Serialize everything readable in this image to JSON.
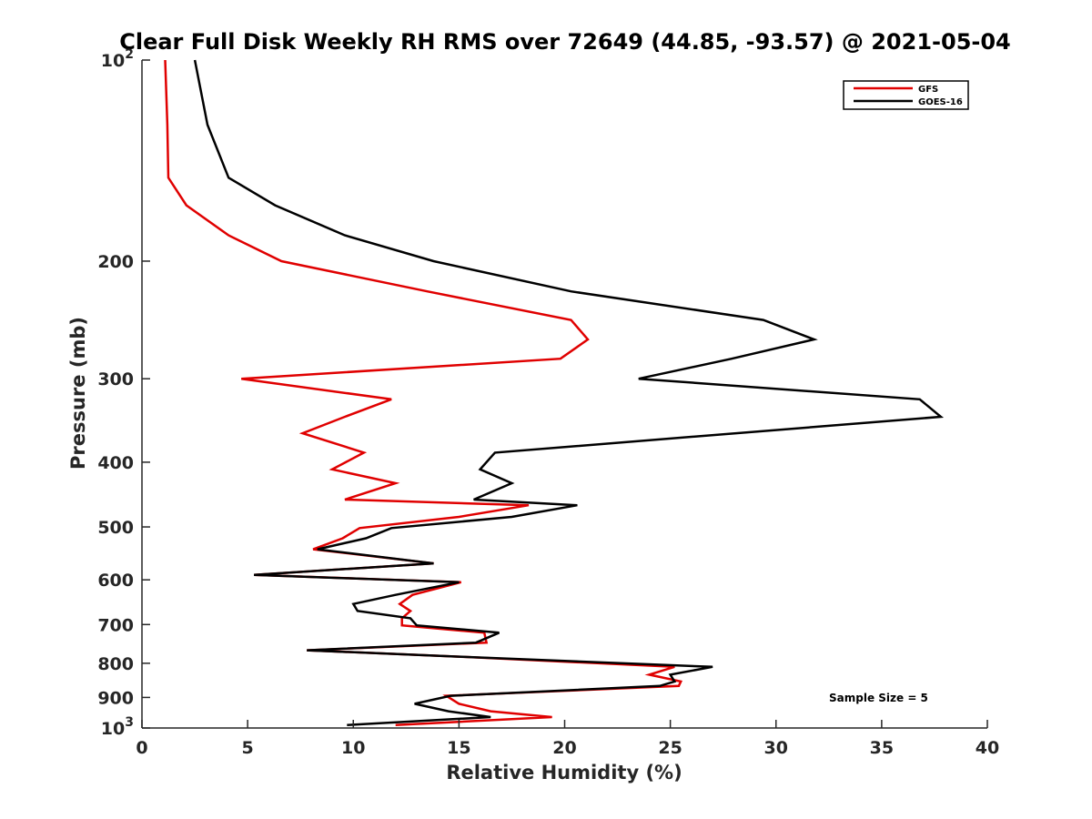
{
  "chart_data": {
    "type": "line",
    "title": "Clear Full Disk Weekly RH RMS over 72649 (44.85, -93.57) @ 2021-05-04",
    "xlabel": "Relative Humidity (%)",
    "ylabel": "Pressure (mb)",
    "xlim": [
      0,
      40
    ],
    "ylim": [
      100,
      1000
    ],
    "yscale": "log",
    "y_reversed": true,
    "x_ticks": [
      0,
      5,
      10,
      15,
      20,
      25,
      30,
      35,
      40
    ],
    "x_tick_labels": [
      "0",
      "5",
      "10",
      "15",
      "20",
      "25",
      "30",
      "35",
      "40"
    ],
    "y_ticks": [
      100,
      200,
      300,
      400,
      500,
      600,
      700,
      800,
      900,
      1000
    ],
    "y_tick_labels": [
      {
        "base": "10",
        "exp": "2"
      },
      {
        "base": "200",
        "exp": ""
      },
      {
        "base": "300",
        "exp": ""
      },
      {
        "base": "400",
        "exp": ""
      },
      {
        "base": "500",
        "exp": ""
      },
      {
        "base": "600",
        "exp": ""
      },
      {
        "base": "700",
        "exp": ""
      },
      {
        "base": "800",
        "exp": ""
      },
      {
        "base": "900",
        "exp": ""
      },
      {
        "base": "10",
        "exp": "3"
      }
    ],
    "legend_position": "top-right",
    "annotation": "Sample Size = 5",
    "series": [
      {
        "name": "GFS",
        "color": "#e00000",
        "points": [
          [
            1.1,
            100
          ],
          [
            1.2,
            125
          ],
          [
            1.25,
            150
          ],
          [
            2.1,
            165
          ],
          [
            4.1,
            183
          ],
          [
            6.6,
            200
          ],
          [
            13.5,
            222
          ],
          [
            20.3,
            245
          ],
          [
            21.1,
            262
          ],
          [
            19.8,
            280
          ],
          [
            4.7,
            300
          ],
          [
            11.8,
            322
          ],
          [
            9.6,
            342
          ],
          [
            7.6,
            362
          ],
          [
            10.5,
            387
          ],
          [
            9.0,
            410
          ],
          [
            12.0,
            430
          ],
          [
            9.6,
            455
          ],
          [
            18.3,
            464
          ],
          [
            15.0,
            483
          ],
          [
            10.3,
            502
          ],
          [
            9.5,
            520
          ],
          [
            8.1,
            540
          ],
          [
            13.8,
            567
          ],
          [
            5.3,
            590
          ],
          [
            15.1,
            605
          ],
          [
            12.8,
            632
          ],
          [
            12.2,
            652
          ],
          [
            12.7,
            668
          ],
          [
            12.3,
            685
          ],
          [
            12.3,
            702
          ],
          [
            16.2,
            720
          ],
          [
            16.3,
            745
          ],
          [
            7.8,
            765
          ],
          [
            15.0,
            782
          ],
          [
            25.2,
            810
          ],
          [
            24.0,
            832
          ],
          [
            25.5,
            852
          ],
          [
            25.4,
            865
          ],
          [
            14.4,
            895
          ],
          [
            15.0,
            920
          ],
          [
            16.5,
            944
          ],
          [
            19.4,
            963
          ],
          [
            12.0,
            990
          ]
        ]
      },
      {
        "name": "GOES-16",
        "color": "#000000",
        "points": [
          [
            2.5,
            100
          ],
          [
            3.1,
            125
          ],
          [
            4.1,
            150
          ],
          [
            6.3,
            165
          ],
          [
            9.6,
            183
          ],
          [
            13.8,
            200
          ],
          [
            20.3,
            222
          ],
          [
            29.4,
            245
          ],
          [
            31.8,
            262
          ],
          [
            27.9,
            280
          ],
          [
            23.5,
            300
          ],
          [
            36.8,
            322
          ],
          [
            37.8,
            342
          ],
          [
            16.7,
            387
          ],
          [
            16.0,
            410
          ],
          [
            17.5,
            430
          ],
          [
            15.7,
            455
          ],
          [
            20.6,
            464
          ],
          [
            17.5,
            483
          ],
          [
            11.8,
            502
          ],
          [
            10.6,
            520
          ],
          [
            8.3,
            540
          ],
          [
            13.8,
            567
          ],
          [
            5.3,
            590
          ],
          [
            15.0,
            605
          ],
          [
            12.0,
            632
          ],
          [
            10.0,
            652
          ],
          [
            10.2,
            668
          ],
          [
            12.7,
            685
          ],
          [
            13.0,
            702
          ],
          [
            16.9,
            720
          ],
          [
            15.8,
            745
          ],
          [
            7.8,
            765
          ],
          [
            15.0,
            782
          ],
          [
            27.0,
            810
          ],
          [
            25.0,
            832
          ],
          [
            25.2,
            852
          ],
          [
            24.5,
            865
          ],
          [
            14.6,
            895
          ],
          [
            12.9,
            920
          ],
          [
            14.5,
            944
          ],
          [
            16.5,
            963
          ],
          [
            9.7,
            990
          ]
        ]
      }
    ]
  }
}
